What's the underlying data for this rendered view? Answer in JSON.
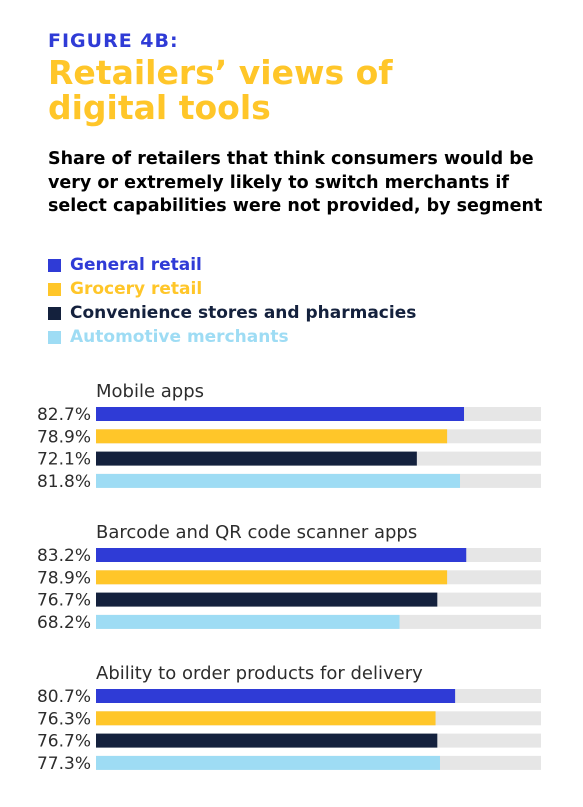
{
  "figure_label": "FIGURE 4B:",
  "title": "Retailers’ views of digital tools",
  "subtitle": "Share of retailers that think consumers would be very or extremely likely to switch merchants if select capabilities were not provided, by segment",
  "legend": [
    {
      "label": "General retail",
      "color": "#2f3bd6"
    },
    {
      "label": "Grocery retail",
      "color": "#ffc629"
    },
    {
      "label": "Convenience stores and pharmacies",
      "color": "#14213d"
    },
    {
      "label": "Automotive merchants",
      "color": "#9edcf4"
    }
  ],
  "colors": {
    "track": "#e6e6e6"
  },
  "chart_data": {
    "type": "bar",
    "orientation": "horizontal",
    "series_names": [
      "General retail",
      "Grocery retail",
      "Convenience stores and pharmacies",
      "Automotive merchants"
    ],
    "groups": [
      {
        "title": "Mobile apps",
        "values": [
          82.7,
          78.9,
          72.1,
          81.8
        ],
        "labels": [
          "82.7%",
          "78.9%",
          "72.1%",
          "81.8%"
        ]
      },
      {
        "title": "Barcode and QR code scanner apps",
        "values": [
          83.2,
          78.9,
          76.7,
          68.2
        ],
        "labels": [
          "83.2%",
          "78.9%",
          "76.7%",
          "68.2%"
        ]
      },
      {
        "title": "Ability to order products for delivery",
        "values": [
          80.7,
          76.3,
          76.7,
          77.3
        ],
        "labels": [
          "80.7%",
          "76.3%",
          "76.7%",
          "77.3%"
        ]
      }
    ]
  }
}
